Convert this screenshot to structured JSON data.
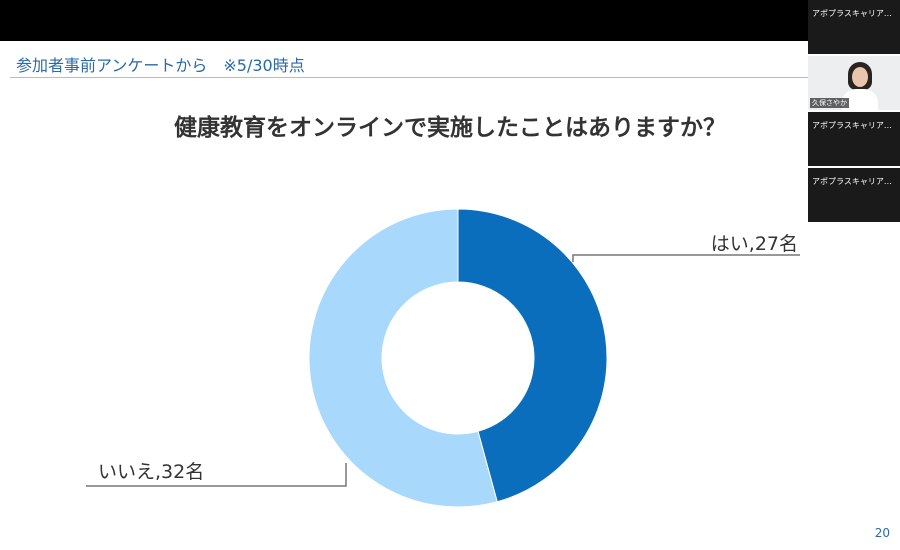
{
  "slide": {
    "header": "参加者事前アンケートから　※5/30時点",
    "question": "健康教育をオンラインで実施したことはありますか？",
    "page_number": "20"
  },
  "participants": [
    {
      "name": "アポプラスキャリア…",
      "video": false
    },
    {
      "name": "久保さやか",
      "video": true
    },
    {
      "name": "アポプラスキャリア…",
      "video": false
    },
    {
      "name": "アポプラスキャリア…",
      "video": false
    }
  ],
  "chart_data": {
    "type": "pie",
    "variant": "donut",
    "categories": [
      "はい",
      "いいえ"
    ],
    "values": [
      27,
      32
    ],
    "unit": "名",
    "labels": [
      "はい,27名",
      "いいえ,32名"
    ],
    "colors": [
      "#0a6ebd",
      "#a8d8fb"
    ],
    "start": "12 o'clock",
    "direction": "clockwise"
  }
}
